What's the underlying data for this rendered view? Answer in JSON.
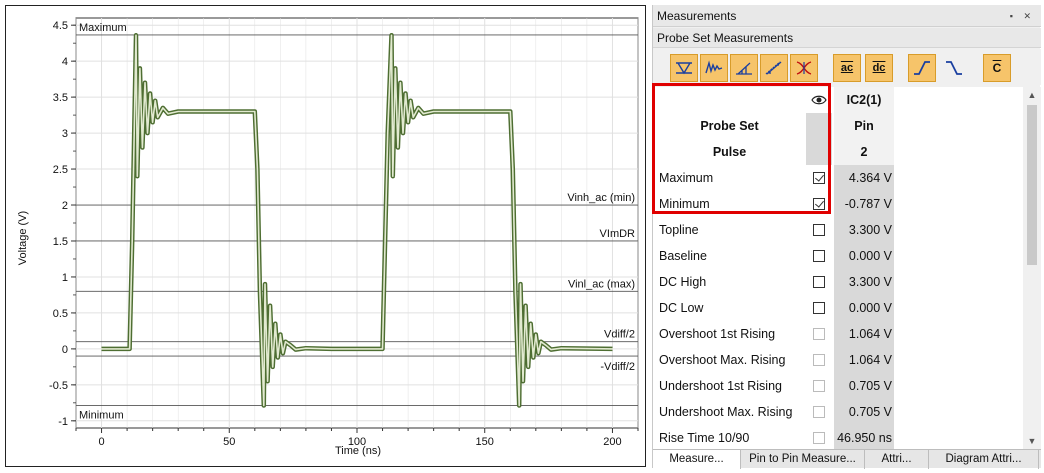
{
  "chart": {
    "xlabel": "Time (ns)",
    "ylabel": "Voltage (V)",
    "x_ticks": [
      "0",
      "50",
      "100",
      "150",
      "200"
    ],
    "y_ticks": [
      "4.5",
      "4",
      "3.5",
      "3",
      "2.5",
      "2",
      "1.5",
      "1",
      "0.5",
      "0",
      "-0.5",
      "-1"
    ],
    "thresholds": [
      {
        "label": "Maximum",
        "value": 4.364,
        "side": "left"
      },
      {
        "label": "Vinh_ac (min)",
        "value": 2.0,
        "side": "right"
      },
      {
        "label": "VImDR",
        "value": 1.5,
        "side": "right"
      },
      {
        "label": "Vinl_ac (max)",
        "value": 0.8,
        "side": "right"
      },
      {
        "label": "Vdiff/2",
        "value": 0.1,
        "side": "right"
      },
      {
        "label": "-Vdiff/2",
        "value": -0.1,
        "side": "right"
      },
      {
        "label": "Minimum",
        "value": -0.787,
        "side": "left"
      }
    ],
    "colors": {
      "trace": "#4e6e32",
      "trace_fill": "#e2ead0",
      "grid": "#e0e0e0",
      "threshold": "#555555"
    }
  },
  "chart_data": {
    "type": "line",
    "xlabel": "Time (ns)",
    "ylabel": "Voltage (V)",
    "xlim": [
      -10,
      210
    ],
    "ylim": [
      -1.1,
      4.6
    ],
    "grid": true,
    "series": [
      {
        "x": [
          0,
          11,
          12,
          13.5,
          14,
          15,
          16,
          17,
          18,
          19,
          20,
          21,
          22,
          24,
          26,
          30,
          40,
          60,
          61,
          62,
          63.5,
          64,
          65,
          66,
          67,
          68,
          69,
          70,
          71,
          72,
          74,
          76,
          80,
          90,
          110,
          111,
          112,
          113.5,
          114,
          115,
          116,
          117,
          118,
          119,
          120,
          121,
          122,
          124,
          126,
          130,
          140,
          160,
          161,
          162,
          163.5,
          164,
          165,
          166,
          167,
          168,
          169,
          170,
          171,
          172,
          174,
          176,
          180,
          200
        ],
        "values": [
          0.0,
          0.0,
          1.5,
          4.36,
          2.4,
          3.9,
          2.8,
          3.7,
          3.0,
          3.55,
          3.15,
          3.45,
          3.22,
          3.35,
          3.27,
          3.3,
          3.3,
          3.3,
          2.5,
          0.8,
          -0.787,
          0.9,
          -0.45,
          0.6,
          -0.25,
          0.35,
          -0.12,
          0.2,
          -0.06,
          0.1,
          0.05,
          -0.01,
          0.01,
          0.0,
          0.0,
          1.5,
          3.0,
          4.36,
          2.4,
          3.9,
          2.8,
          3.7,
          3.0,
          3.55,
          3.15,
          3.45,
          3.22,
          3.35,
          3.27,
          3.3,
          3.3,
          3.3,
          2.5,
          0.8,
          -0.787,
          0.9,
          -0.45,
          0.6,
          -0.25,
          0.35,
          -0.12,
          0.2,
          -0.06,
          0.1,
          0.05,
          -0.01,
          0.01,
          0.0
        ]
      }
    ]
  },
  "panel": {
    "title": "Measurements",
    "pin_icons": "▪ ✕",
    "subtitle": "Probe Set Measurements",
    "toolbar_ac": "ac",
    "toolbar_dc": "dc",
    "toolbar_c": "C"
  },
  "table": {
    "column_header": "IC2(1)",
    "header_rows": [
      {
        "label": "Probe Set",
        "value": "Pin"
      },
      {
        "label": "Pulse",
        "value": "2"
      }
    ],
    "rows": [
      {
        "label": "Maximum",
        "checked": true,
        "enabled": true,
        "value": "4.364 V"
      },
      {
        "label": "Minimum",
        "checked": true,
        "enabled": true,
        "value": "-0.787 V"
      },
      {
        "label": "Topline",
        "checked": false,
        "enabled": true,
        "value": "3.300 V"
      },
      {
        "label": "Baseline",
        "checked": false,
        "enabled": true,
        "value": "0.000 V"
      },
      {
        "label": "DC High",
        "checked": false,
        "enabled": true,
        "value": "3.300 V"
      },
      {
        "label": "DC Low",
        "checked": false,
        "enabled": true,
        "value": "0.000 V"
      },
      {
        "label": "Overshoot 1st Rising",
        "checked": false,
        "enabled": false,
        "value": "1.064 V"
      },
      {
        "label": "Overshoot Max. Rising",
        "checked": false,
        "enabled": false,
        "value": "1.064 V"
      },
      {
        "label": "Undershoot 1st Rising",
        "checked": false,
        "enabled": false,
        "value": "0.705 V"
      },
      {
        "label": "Undershoot Max. Rising",
        "checked": false,
        "enabled": false,
        "value": "0.705 V"
      },
      {
        "label": "Rise Time 10/90",
        "checked": false,
        "enabled": false,
        "value": "46.950 ns"
      }
    ]
  },
  "tabs": [
    {
      "label": "Measure...",
      "active": true
    },
    {
      "label": "Pin to Pin Measure...",
      "active": false
    },
    {
      "label": "Attri...",
      "active": false
    },
    {
      "label": "Diagram Attri...",
      "active": false
    }
  ]
}
